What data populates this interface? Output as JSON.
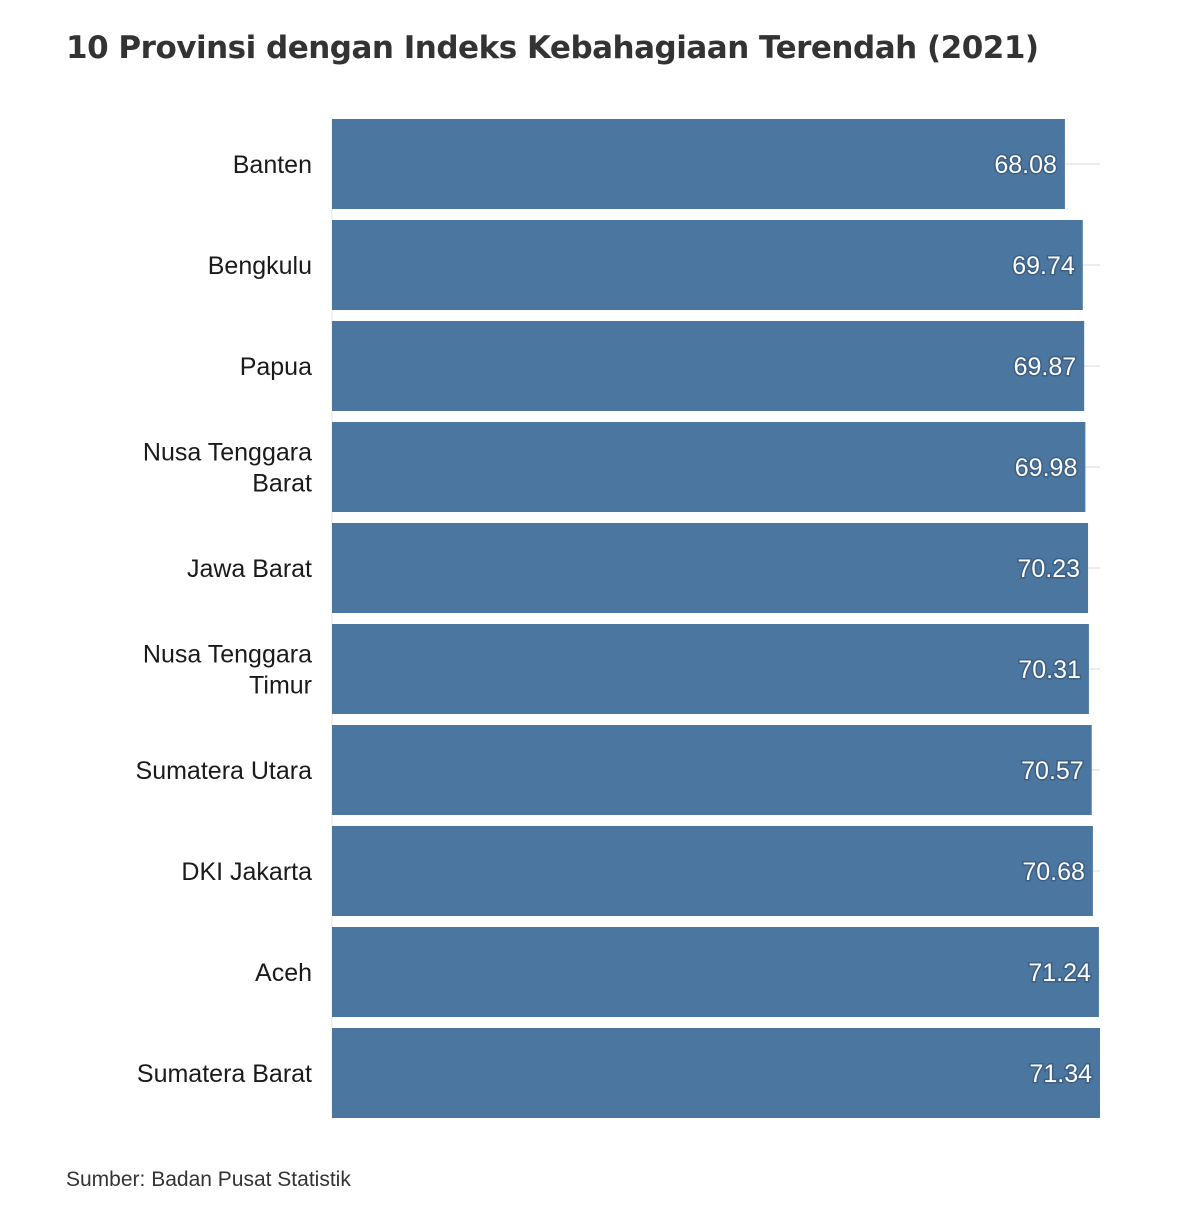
{
  "chart_data": {
    "type": "bar",
    "orientation": "horizontal",
    "title": "10 Provinsi dengan Indeks Kebahagiaan Terendah (2021)",
    "categories": [
      [
        "Banten"
      ],
      [
        "Bengkulu"
      ],
      [
        "Papua"
      ],
      [
        "Nusa Tenggara",
        "Barat"
      ],
      [
        "Jawa Barat"
      ],
      [
        "Nusa Tenggara",
        "Timur"
      ],
      [
        "Sumatera Utara"
      ],
      [
        "DKI Jakarta"
      ],
      [
        "Aceh"
      ],
      [
        "Sumatera Barat"
      ]
    ],
    "values": [
      68.08,
      69.74,
      69.87,
      69.98,
      70.23,
      70.31,
      70.57,
      70.68,
      71.24,
      71.34
    ],
    "value_labels": [
      "68.08",
      "69.74",
      "69.87",
      "69.98",
      "70.23",
      "70.31",
      "70.57",
      "70.68",
      "71.24",
      "71.34"
    ],
    "xlim": [
      0,
      71.34
    ],
    "grid": true,
    "bar_color": "#4a76a0",
    "grid_color": "#e6e6e6"
  },
  "source": "Sumber: Badan Pusat Statistik"
}
